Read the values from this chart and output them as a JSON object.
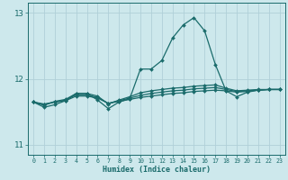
{
  "xlabel": "Humidex (Indice chaleur)",
  "bg_color": "#cde8ec",
  "grid_color_major": "#b0d0d8",
  "grid_color_minor": "#e0f0f4",
  "line_color": "#1a6b6b",
  "x_values": [
    0,
    1,
    2,
    3,
    4,
    5,
    6,
    7,
    8,
    9,
    10,
    11,
    12,
    13,
    14,
    15,
    16,
    17,
    18,
    19,
    20,
    21,
    22,
    23
  ],
  "series": [
    [
      11.65,
      11.57,
      11.61,
      11.67,
      11.78,
      11.78,
      11.68,
      11.55,
      11.65,
      11.7,
      12.15,
      12.15,
      12.28,
      12.62,
      12.82,
      12.93,
      12.73,
      12.22,
      11.82,
      11.73,
      11.8,
      11.83,
      11.84,
      11.84
    ],
    [
      11.65,
      11.6,
      11.66,
      11.69,
      11.78,
      11.78,
      11.74,
      11.62,
      11.68,
      11.73,
      11.79,
      11.82,
      11.84,
      11.86,
      11.87,
      11.89,
      11.9,
      11.91,
      11.86,
      11.82,
      11.83,
      11.84,
      11.84,
      11.84
    ],
    [
      11.65,
      11.61,
      11.65,
      11.68,
      11.76,
      11.76,
      11.72,
      11.63,
      11.67,
      11.71,
      11.75,
      11.78,
      11.8,
      11.82,
      11.83,
      11.85,
      11.86,
      11.87,
      11.84,
      11.81,
      11.82,
      11.83,
      11.84,
      11.84
    ],
    [
      11.65,
      11.62,
      11.65,
      11.67,
      11.74,
      11.74,
      11.71,
      11.63,
      11.66,
      11.69,
      11.72,
      11.74,
      11.76,
      11.78,
      11.79,
      11.81,
      11.82,
      11.83,
      11.82,
      11.8,
      11.81,
      11.83,
      11.84,
      11.84
    ]
  ],
  "ylim": [
    10.85,
    13.15
  ],
  "yticks": [
    11,
    12,
    13
  ],
  "xtick_labels": [
    "0",
    "1",
    "2",
    "3",
    "4",
    "5",
    "6",
    "7",
    "8",
    "9",
    "10",
    "11",
    "12",
    "13",
    "14",
    "15",
    "16",
    "17",
    "18",
    "19",
    "20",
    "21",
    "22",
    "23"
  ],
  "markersize": 2.0,
  "linewidth": 0.9
}
